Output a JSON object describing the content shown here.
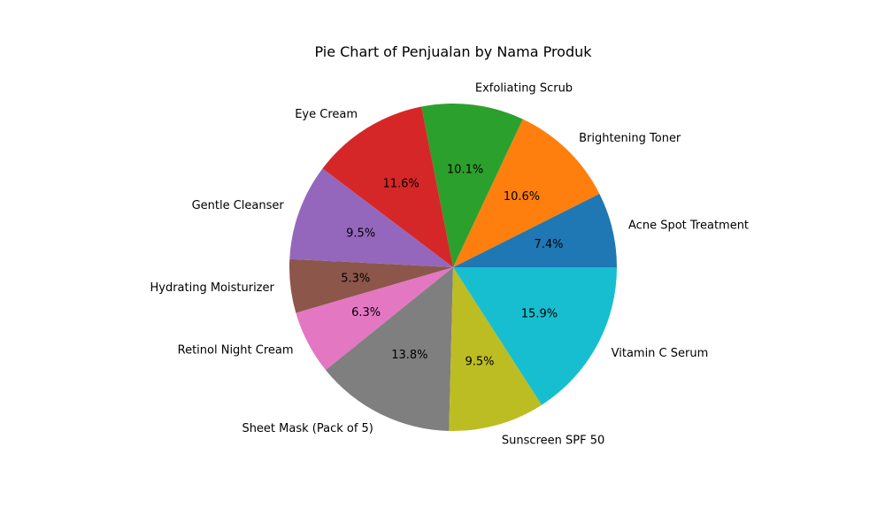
{
  "chart_data": {
    "type": "pie",
    "title": "Pie Chart of Penjualan by Nama Produk",
    "start_angle_deg": 0,
    "direction": "counterclockwise",
    "slices": [
      {
        "label": "Acne Spot Treatment",
        "value": 7.4,
        "pct_label": "7.4%",
        "color": "#1f77b4"
      },
      {
        "label": "Brightening Toner",
        "value": 10.6,
        "pct_label": "10.6%",
        "color": "#ff7f0e"
      },
      {
        "label": "Exfoliating Scrub",
        "value": 10.1,
        "pct_label": "10.1%",
        "color": "#2ca02c"
      },
      {
        "label": "Eye Cream",
        "value": 11.6,
        "pct_label": "11.6%",
        "color": "#d62728"
      },
      {
        "label": "Gentle Cleanser",
        "value": 9.5,
        "pct_label": "9.5%",
        "color": "#9467bd"
      },
      {
        "label": "Hydrating Moisturizer",
        "value": 5.3,
        "pct_label": "5.3%",
        "color": "#8c564b"
      },
      {
        "label": "Retinol Night Cream",
        "value": 6.3,
        "pct_label": "6.3%",
        "color": "#e377c2"
      },
      {
        "label": "Sheet Mask (Pack of 5)",
        "value": 13.8,
        "pct_label": "13.8%",
        "color": "#7f7f7f"
      },
      {
        "label": "Sunscreen SPF 50",
        "value": 9.5,
        "pct_label": "9.5%",
        "color": "#bcbd22"
      },
      {
        "label": "Vitamin C Serum",
        "value": 15.9,
        "pct_label": "15.9%",
        "color": "#17becf"
      }
    ]
  }
}
